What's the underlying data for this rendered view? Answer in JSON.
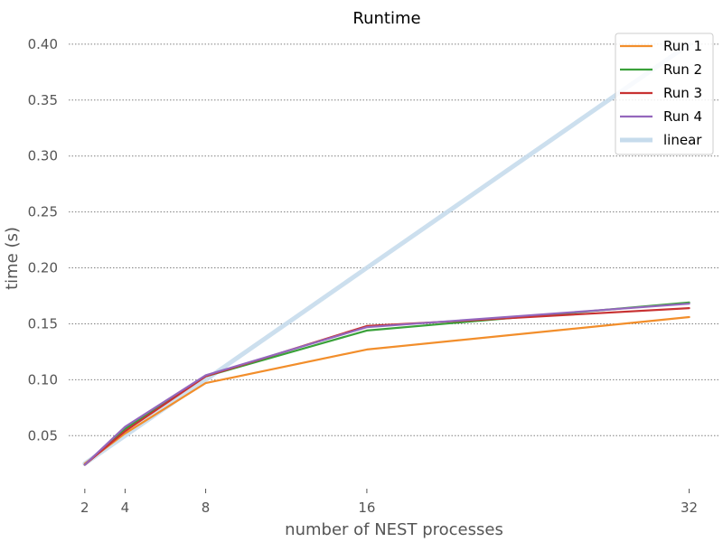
{
  "chart_data": {
    "type": "line",
    "title": "Runtime",
    "xlabel": "number of NEST processes",
    "ylabel": "time (s)",
    "x": [
      2,
      4,
      8,
      16,
      32
    ],
    "x_ticks": [
      "2",
      "4",
      "8",
      "16",
      "32"
    ],
    "y_ticks": [
      "0.05",
      "0.10",
      "0.15",
      "0.20",
      "0.25",
      "0.30",
      "0.35",
      "0.40"
    ],
    "xlim": [
      1.2,
      33.5
    ],
    "ylim": [
      0.005,
      0.412
    ],
    "grid": "horizontal-dotted",
    "legend_position": "top-right",
    "series": [
      {
        "name": "Run 1",
        "color": "#f28e2b",
        "values": [
          0.025,
          0.052,
          0.097,
          0.127,
          0.156
        ]
      },
      {
        "name": "Run 2",
        "color": "#3aa13a",
        "values": [
          0.024,
          0.056,
          0.103,
          0.144,
          0.169
        ]
      },
      {
        "name": "Run 3",
        "color": "#c83232",
        "values": [
          0.024,
          0.054,
          0.103,
          0.148,
          0.164
        ]
      },
      {
        "name": "Run 4",
        "color": "#9467bd",
        "values": [
          0.024,
          0.058,
          0.104,
          0.147,
          0.168
        ]
      },
      {
        "name": "linear",
        "color": "#c6dbec",
        "thick": true,
        "values": [
          0.025,
          0.05,
          0.1,
          0.2,
          0.4
        ]
      }
    ]
  }
}
